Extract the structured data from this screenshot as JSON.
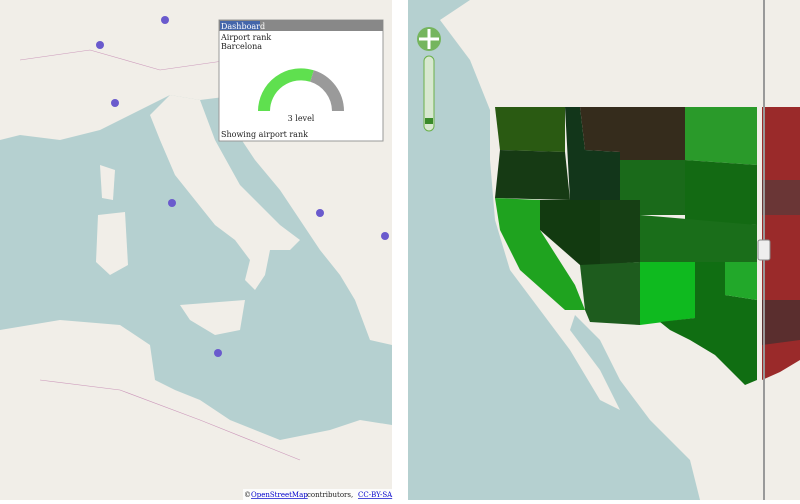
{
  "popup": {
    "title": "Dashboard",
    "lines": [
      "Airport rank",
      "Barcelona"
    ],
    "gauge_label": "3 level",
    "footer": "Showing airport rank"
  },
  "attribution": {
    "prefix": "©",
    "link": "OpenStreetMap",
    "text": "contributors,",
    "license": "CC-BY-SA"
  }
}
